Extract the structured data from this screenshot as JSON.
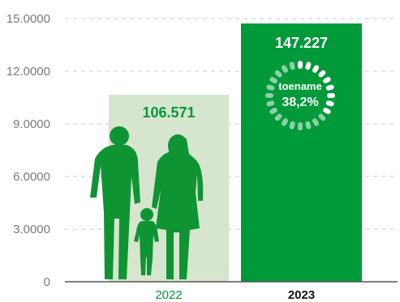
{
  "chart_data": {
    "type": "bar",
    "categories": [
      "2022",
      "2023"
    ],
    "values": [
      106571,
      147227
    ],
    "value_labels": [
      "106.571",
      "147.227"
    ],
    "ylim": [
      0,
      150000
    ],
    "y_ticks": [
      0,
      30000,
      60000,
      90000,
      120000,
      150000
    ],
    "y_tick_labels": [
      "0",
      "3.0000",
      "6.0000",
      "9.0000",
      "12.0000",
      "15.0000"
    ],
    "bar_colors": [
      "#d6e5cd",
      "#009a3a"
    ],
    "grid": true,
    "annotation": {
      "label": "toename",
      "value": "38,2%",
      "progress": 0.382
    }
  },
  "colors": {
    "accent": "#009a3a",
    "light_bar": "#d6e5cd",
    "silhouette": "#0f9434",
    "grid": "#c8c8c8",
    "axis": "#555555"
  }
}
